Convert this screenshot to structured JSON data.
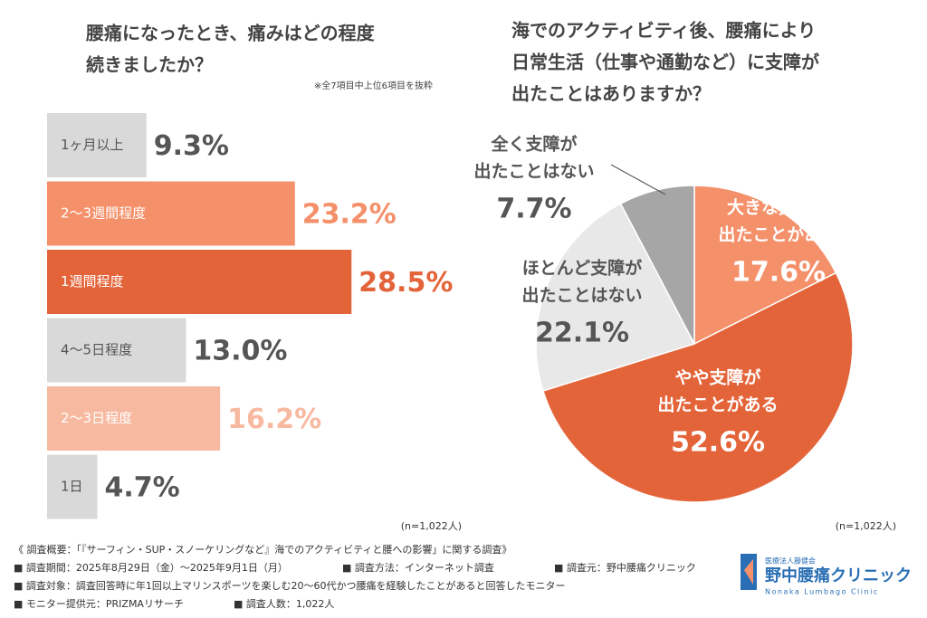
{
  "chart_data": [
    {
      "type": "bar",
      "orientation": "horizontal",
      "title": [
        "腰痛になったとき、痛みはどの程度",
        "続きましたか？"
      ],
      "subtitle": "※全7項目中上位6項目を抜粋",
      "categories": [
        "1ヶ月以上",
        "2〜3週間程度",
        "1週間程度",
        "4〜5日程度",
        "2〜3日程度",
        "1日"
      ],
      "values": [
        9.3,
        23.2,
        28.5,
        13.0,
        16.2,
        4.7
      ],
      "value_labels": [
        "9.3%",
        "23.2%",
        "28.5%",
        "13.0%",
        "16.2%",
        "4.7%"
      ],
      "colors": [
        "#d9d9d9",
        "#f4906a",
        "#e4643a",
        "#d9d9d9",
        "#f7b9a0",
        "#d9d9d9"
      ],
      "label_colors": [
        "#555555",
        "#f4906a",
        "#e4643a",
        "#555555",
        "#f7b9a0",
        "#555555"
      ],
      "category_colors": [
        "#555555",
        "#ffffff",
        "#ffffff",
        "#555555",
        "#ffffff",
        "#555555"
      ],
      "note": "(n=1,022人)"
    },
    {
      "type": "pie",
      "title": [
        "海でのアクティビティ後、腰痛により",
        "日常生活（仕事や通勤など）に支障が",
        "出たことはありますか？"
      ],
      "categories": [
        [
          "大きな支障が",
          "出たことがある"
        ],
        [
          "やや支障が",
          "出たことがある"
        ],
        [
          "ほとんど支障が",
          "出たことはない"
        ],
        [
          "全く支障が",
          "出たことはない"
        ]
      ],
      "values": [
        17.6,
        52.6,
        22.1,
        7.7
      ],
      "value_labels": [
        "17.6%",
        "52.6%",
        "22.1%",
        "7.7%"
      ],
      "colors": [
        "#f4906a",
        "#e4643a",
        "#e8e8e8",
        "#a6a6a6"
      ],
      "label_colors": [
        "#ffffff",
        "#ffffff",
        "#555555",
        "#555555"
      ],
      "note": "(n=1,022人)"
    }
  ],
  "footer": {
    "heading": "《 調査概要：「『サーフィン・SUP・スノーケリングなど』海でのアクティビティと腰への影響」に関する調査》",
    "period": "■ 調査期間：2025年8月29日（金）〜2025年9月1日（月）",
    "method": "■ 調査方法：インターネット調査",
    "source": "■ 調査元：野中腰痛クリニック",
    "target": "■ 調査対象：調査回答時に年1回以上マリンスポーツを楽しむ20〜60代かつ腰痛を経験したことがあると回答したモニター",
    "provider": "■ モニター提供元：PRIZMAリサーチ",
    "count": "■ 調査人数：1,022人"
  },
  "logo": {
    "org": "医療法人藤健会",
    "name": "野中腰痛クリニック",
    "roman": "Nonaka Lumbago Clinic"
  }
}
